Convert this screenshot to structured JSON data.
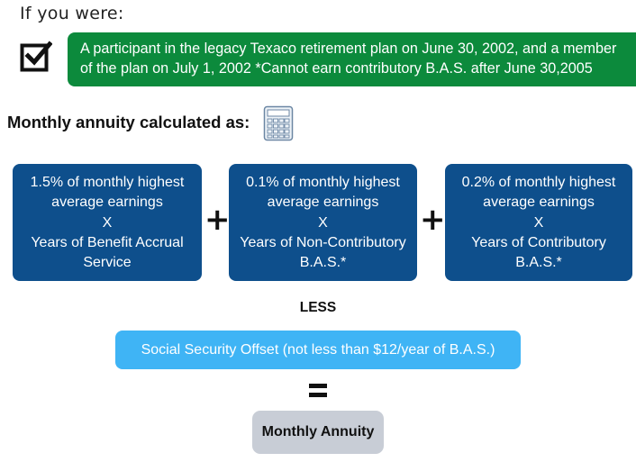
{
  "intro": "If you were:",
  "banner": {
    "line1": "A participant in the legacy Texaco retirement plan on June 30, 2002, and a member",
    "line2": "of the plan on July 1, 2002 *Cannot earn contributory B.A.S. after June 30,2005",
    "color": "#0c8a3c",
    "icon": "checkbox-checked-icon"
  },
  "heading": "Monthly annuity calculated as:",
  "heading_icon": "calculator-icon",
  "boxes": [
    {
      "lines": [
        "1.5% of monthly highest",
        "average earnings",
        "X",
        "Years of Benefit Accrual",
        "Service"
      ]
    },
    {
      "lines": [
        "0.1% of monthly highest",
        "average earnings",
        "X",
        "Years of Non-Contributory",
        "B.A.S.*"
      ]
    },
    {
      "lines": [
        "0.2% of monthly highest",
        "average earnings",
        "X",
        "Years of Contributory",
        "B.A.S.*"
      ]
    }
  ],
  "box_color": "#0e4f8c",
  "plus": "+",
  "less": "LESS",
  "offset": {
    "text": "Social Security Offset (not less than $12/year of B.A.S.)",
    "color": "#3fb4f5"
  },
  "result": {
    "text": "Monthly Annuity",
    "color": "#c8cdd6"
  }
}
